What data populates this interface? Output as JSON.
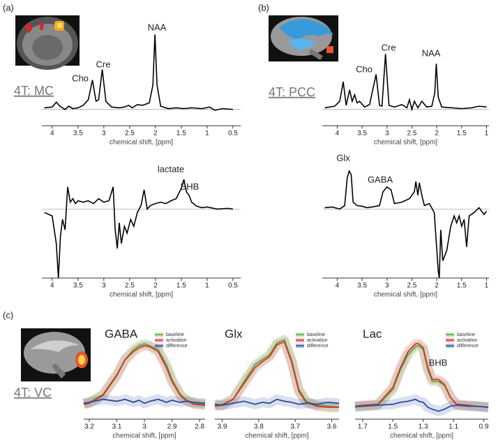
{
  "chart_data": [
    {
      "type": "line",
      "panel_label": "(a)",
      "inset_label": "4T: MC",
      "annotations": [
        "Cho",
        "Cre",
        "NAA"
      ],
      "xlabel": "chemical shift, [ppm]",
      "xlim": [
        4.2,
        0.35
      ],
      "xticks": [
        4,
        3.5,
        3,
        2.5,
        2,
        1.5,
        1,
        0.5
      ],
      "ylim": [
        -0.2,
        1.0
      ],
      "color": "#000000",
      "x": [
        4.15,
        4.0,
        3.92,
        3.85,
        3.75,
        3.68,
        3.6,
        3.5,
        3.4,
        3.3,
        3.22,
        3.15,
        3.1,
        3.03,
        2.96,
        2.85,
        2.7,
        2.6,
        2.52,
        2.45,
        2.35,
        2.25,
        2.12,
        2.05,
        2.01,
        1.97,
        1.9,
        1.75,
        1.6,
        1.45,
        1.3,
        1.1,
        0.95,
        0.85,
        0.7,
        0.5
      ],
      "values": [
        0.02,
        0.03,
        0.09,
        0.04,
        0.0,
        0.04,
        0.01,
        0.02,
        0.05,
        0.12,
        0.36,
        0.1,
        0.12,
        0.49,
        0.1,
        0.03,
        0.02,
        0.03,
        0.05,
        0.02,
        0.06,
        0.05,
        0.08,
        0.3,
        0.92,
        0.3,
        0.04,
        0.01,
        0.02,
        0.01,
        0.02,
        0.01,
        0.03,
        -0.01,
        0.01,
        0.0
      ]
    },
    {
      "type": "line",
      "annotations": [
        "lactate",
        "BHB"
      ],
      "xlabel": "chemical shift, [ppm]",
      "xlim": [
        4.2,
        0.35
      ],
      "xticks": [
        4,
        3.5,
        3,
        2.5,
        2,
        1.5,
        1,
        0.5
      ],
      "ylim": [
        -1.0,
        0.6
      ],
      "color": "#000000",
      "x": [
        4.15,
        4.0,
        3.92,
        3.88,
        3.84,
        3.8,
        3.75,
        3.7,
        3.65,
        3.6,
        3.55,
        3.5,
        3.4,
        3.3,
        3.2,
        3.1,
        3.0,
        2.9,
        2.82,
        2.78,
        2.74,
        2.7,
        2.66,
        2.6,
        2.55,
        2.48,
        2.42,
        2.35,
        2.28,
        2.22,
        2.16,
        2.1,
        2.0,
        1.9,
        1.8,
        1.7,
        1.6,
        1.5,
        1.45,
        1.4,
        1.35,
        1.3,
        1.2,
        1.1,
        1.0,
        0.8,
        0.6,
        0.5
      ],
      "values": [
        -0.05,
        -0.1,
        -0.5,
        -1.0,
        -0.4,
        -0.15,
        -0.3,
        0.32,
        0.1,
        0.15,
        0.08,
        0.12,
        0.1,
        0.12,
        0.08,
        0.15,
        0.1,
        0.12,
        0.32,
        -0.3,
        -0.57,
        -0.2,
        -0.5,
        -0.25,
        -0.35,
        -0.15,
        -0.25,
        -0.05,
        0.05,
        0.28,
        0.0,
        0.05,
        0.08,
        0.1,
        0.08,
        0.12,
        0.15,
        0.3,
        0.43,
        0.25,
        0.2,
        0.1,
        0.04,
        0.02,
        0.03,
        0.0,
        0.01,
        0.0
      ]
    },
    {
      "type": "line",
      "panel_label": "(b)",
      "inset_label": "4T: PCC",
      "annotations": [
        "Cho",
        "Cre",
        "NAA"
      ],
      "xlabel": "chemical shift, [ppm]",
      "xlim": [
        4.3,
        0.95
      ],
      "xticks": [
        4,
        3.5,
        3,
        2.5,
        2,
        1.5,
        1
      ],
      "ylim": [
        -0.2,
        1.0
      ],
      "color": "#000000",
      "x": [
        4.25,
        4.05,
        3.95,
        3.88,
        3.82,
        3.75,
        3.7,
        3.65,
        3.6,
        3.55,
        3.45,
        3.35,
        3.22,
        3.15,
        3.1,
        3.03,
        2.96,
        2.85,
        2.7,
        2.6,
        2.55,
        2.5,
        2.45,
        2.38,
        2.3,
        2.2,
        2.1,
        2.04,
        2.01,
        1.97,
        1.9,
        1.7,
        1.5,
        1.3,
        1.15,
        1.0
      ],
      "values": [
        0.02,
        0.04,
        0.1,
        0.34,
        0.05,
        0.24,
        0.1,
        0.18,
        0.08,
        0.1,
        0.03,
        0.06,
        0.43,
        0.05,
        0.04,
        0.68,
        0.05,
        0.03,
        0.06,
        0.02,
        0.12,
        0.0,
        0.1,
        0.02,
        0.1,
        0.03,
        0.04,
        0.2,
        0.56,
        0.15,
        0.03,
        0.02,
        0.01,
        0.02,
        0.04,
        0.03
      ]
    },
    {
      "type": "line",
      "annotations": [
        "Glx",
        "GABA"
      ],
      "xlabel": "chemical shift, [ppm]",
      "xlim": [
        4.3,
        0.95
      ],
      "xticks": [
        4,
        3.5,
        3,
        2.5,
        2,
        1.5,
        1
      ],
      "ylim": [
        -1.0,
        0.6
      ],
      "color": "#000000",
      "x": [
        4.25,
        4.1,
        3.95,
        3.85,
        3.8,
        3.76,
        3.72,
        3.68,
        3.6,
        3.5,
        3.4,
        3.3,
        3.15,
        3.08,
        3.0,
        2.92,
        2.85,
        2.7,
        2.55,
        2.45,
        2.42,
        2.38,
        2.35,
        2.3,
        2.25,
        2.15,
        2.05,
        1.97,
        1.95,
        1.92,
        1.88,
        1.8,
        1.72,
        1.65,
        1.6,
        1.55,
        1.5,
        1.45,
        1.4,
        1.35,
        1.25,
        1.15,
        1.05,
        1.0
      ],
      "values": [
        0.02,
        0.03,
        0.0,
        0.05,
        0.45,
        0.55,
        0.5,
        0.1,
        0.05,
        0.04,
        0.02,
        0.03,
        0.05,
        0.25,
        0.32,
        0.28,
        0.08,
        0.1,
        0.15,
        0.25,
        0.4,
        0.2,
        0.38,
        0.2,
        0.05,
        0.08,
        -0.05,
        -0.9,
        -1.0,
        -0.3,
        -0.75,
        -0.6,
        -0.25,
        -0.1,
        -0.2,
        -0.1,
        -0.25,
        -0.15,
        -0.55,
        -0.1,
        -0.05,
        0.02,
        -0.08,
        -0.03
      ]
    },
    {
      "type": "line",
      "panel_label": "(c)",
      "inset_label": "4T: VC",
      "title": "GABA",
      "xlabel": "chemical shift, [ppm]",
      "xlim": [
        3.22,
        2.78
      ],
      "xticks": [
        3.2,
        3.1,
        3,
        2.9,
        2.8
      ],
      "ylim": [
        0,
        1
      ],
      "x": [
        3.22,
        3.2,
        3.15,
        3.1,
        3.07,
        3.04,
        3.02,
        3.0,
        2.98,
        2.95,
        2.92,
        2.9,
        2.87,
        2.85,
        2.82,
        2.78
      ],
      "series": [
        {
          "name": "baseline",
          "color": "#4fae3c",
          "values": [
            0.16,
            0.17,
            0.25,
            0.45,
            0.6,
            0.7,
            0.74,
            0.76,
            0.74,
            0.7,
            0.55,
            0.4,
            0.25,
            0.2,
            0.16,
            0.15
          ]
        },
        {
          "name": "activation",
          "color": "#d7302a",
          "values": [
            0.15,
            0.16,
            0.24,
            0.44,
            0.6,
            0.68,
            0.72,
            0.74,
            0.73,
            0.68,
            0.52,
            0.38,
            0.24,
            0.19,
            0.15,
            0.14
          ]
        },
        {
          "name": "difference",
          "color": "#2c4b9c",
          "values": [
            0.16,
            0.17,
            0.2,
            0.18,
            0.2,
            0.17,
            0.19,
            0.16,
            0.18,
            0.2,
            0.17,
            0.19,
            0.17,
            0.18,
            0.17,
            0.16
          ]
        }
      ]
    },
    {
      "type": "line",
      "title": "Glx",
      "xlabel": "chemical shift, [ppm]",
      "xlim": [
        3.92,
        3.58
      ],
      "xticks": [
        3.9,
        3.8,
        3.7,
        3.6
      ],
      "ylim": [
        0,
        1
      ],
      "x": [
        3.92,
        3.9,
        3.87,
        3.84,
        3.81,
        3.79,
        3.77,
        3.75,
        3.73,
        3.71,
        3.69,
        3.67,
        3.64,
        3.61,
        3.58
      ],
      "series": [
        {
          "name": "baseline",
          "color": "#4fae3c",
          "values": [
            0.14,
            0.15,
            0.2,
            0.38,
            0.55,
            0.6,
            0.65,
            0.77,
            0.8,
            0.6,
            0.3,
            0.18,
            0.14,
            0.13,
            0.12
          ]
        },
        {
          "name": "activation",
          "color": "#d7302a",
          "values": [
            0.13,
            0.14,
            0.2,
            0.36,
            0.52,
            0.58,
            0.63,
            0.75,
            0.78,
            0.58,
            0.28,
            0.17,
            0.13,
            0.12,
            0.12
          ]
        },
        {
          "name": "difference",
          "color": "#2c4b9c",
          "values": [
            0.15,
            0.14,
            0.16,
            0.18,
            0.15,
            0.17,
            0.16,
            0.2,
            0.18,
            0.17,
            0.15,
            0.16,
            0.15,
            0.17,
            0.16
          ]
        }
      ]
    },
    {
      "type": "line",
      "title": "Lac",
      "annotations": [
        "BHB"
      ],
      "xlabel": "chemical shift, [ppm]",
      "xlim": [
        1.75,
        0.87
      ],
      "xticks": [
        1.7,
        1.5,
        1.3,
        1.1,
        0.9
      ],
      "ylim": [
        0,
        1
      ],
      "x": [
        1.75,
        1.7,
        1.6,
        1.5,
        1.45,
        1.4,
        1.35,
        1.33,
        1.3,
        1.27,
        1.24,
        1.2,
        1.16,
        1.12,
        1.08,
        1.0,
        0.95,
        0.87
      ],
      "series": [
        {
          "name": "baseline",
          "color": "#4fae3c",
          "values": [
            0.12,
            0.13,
            0.14,
            0.3,
            0.5,
            0.65,
            0.73,
            0.74,
            0.7,
            0.5,
            0.38,
            0.38,
            0.34,
            0.22,
            0.15,
            0.13,
            0.13,
            0.12
          ]
        },
        {
          "name": "activation",
          "color": "#d7302a",
          "values": [
            0.13,
            0.14,
            0.15,
            0.32,
            0.52,
            0.68,
            0.76,
            0.76,
            0.72,
            0.52,
            0.4,
            0.4,
            0.35,
            0.22,
            0.15,
            0.14,
            0.13,
            0.12
          ]
        },
        {
          "name": "difference",
          "color": "#2c4b9c",
          "values": [
            0.13,
            0.13,
            0.14,
            0.15,
            0.17,
            0.18,
            0.2,
            0.18,
            0.17,
            0.12,
            0.1,
            0.08,
            0.1,
            0.13,
            0.14,
            0.13,
            0.13,
            0.12
          ]
        }
      ]
    }
  ]
}
